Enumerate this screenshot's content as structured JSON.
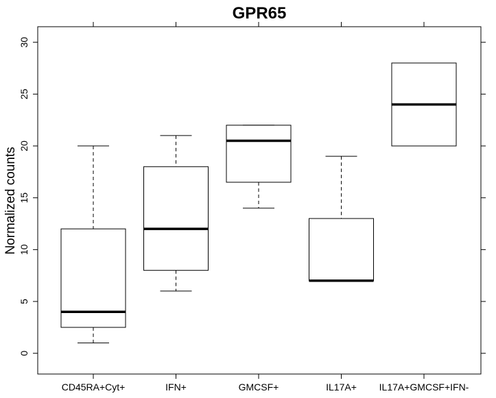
{
  "chart_data": {
    "type": "boxplot",
    "title": "GPR65",
    "xlabel": "",
    "ylabel": "Normalized counts",
    "ylim": [
      -2,
      31.5
    ],
    "yticks": [
      0,
      5,
      10,
      15,
      20,
      25,
      30
    ],
    "ytick_labels": [
      "0",
      "5",
      "10",
      "15",
      "20",
      "25",
      "30"
    ],
    "categories": [
      "CD45RA+Cyt+",
      "IFN+",
      "GMCSF+",
      "IL17A+",
      "IL17A+GMCSF+IFN-"
    ],
    "boxes": [
      {
        "category": "CD45RA+Cyt+",
        "whisker_low": 1,
        "q1": 2.5,
        "median": 4,
        "q3": 12,
        "whisker_high": 20
      },
      {
        "category": "IFN+",
        "whisker_low": 6,
        "q1": 8,
        "median": 12,
        "q3": 18,
        "whisker_high": 21
      },
      {
        "category": "GMCSF+",
        "whisker_low": 14,
        "q1": 16.5,
        "median": 20.5,
        "q3": 22,
        "whisker_high": 22
      },
      {
        "category": "IL17A+",
        "whisker_low": 7,
        "q1": 7,
        "median": 7,
        "q3": 13,
        "whisker_high": 19
      },
      {
        "category": "IL17A+GMCSF+IFN-",
        "whisker_low": 20,
        "q1": 20,
        "median": 24,
        "q3": 28,
        "whisker_high": 28
      }
    ],
    "grid": false,
    "legend": "none",
    "colors": {
      "box_fill": "#ffffff",
      "stroke": "#000000"
    }
  }
}
